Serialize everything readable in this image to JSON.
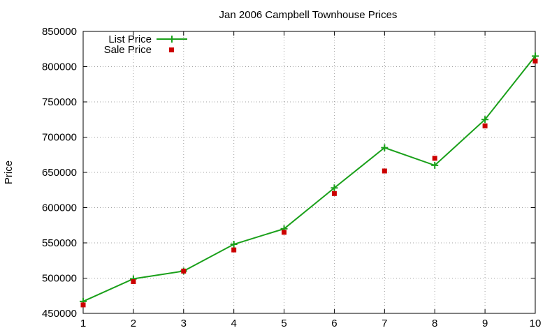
{
  "chart_data": {
    "type": "line",
    "title": "Jan 2006 Campbell Townhouse Prices",
    "xlabel": "",
    "ylabel": "Price",
    "xlim": [
      1,
      10
    ],
    "ylim": [
      450000,
      850000
    ],
    "x": [
      1,
      2,
      3,
      4,
      5,
      6,
      7,
      8,
      9,
      10
    ],
    "x_ticks": [
      "1",
      "2",
      "3",
      "4",
      "5",
      "6",
      "7",
      "8",
      "9",
      "10"
    ],
    "y_ticks": [
      "450000",
      "500000",
      "550000",
      "600000",
      "650000",
      "700000",
      "750000",
      "800000",
      "850000"
    ],
    "grid": true,
    "legend_position": "top-left",
    "series": [
      {
        "name": "List Price",
        "style": "line with plus markers",
        "color": "#1aa01a",
        "values": [
          467000,
          499000,
          510000,
          548000,
          570000,
          628000,
          685000,
          660000,
          725000,
          815000
        ]
      },
      {
        "name": "Sale Price",
        "style": "square markers",
        "color": "#cc0000",
        "values": [
          462000,
          495000,
          510000,
          540000,
          565000,
          620000,
          652000,
          670000,
          716000,
          808000
        ]
      }
    ]
  }
}
